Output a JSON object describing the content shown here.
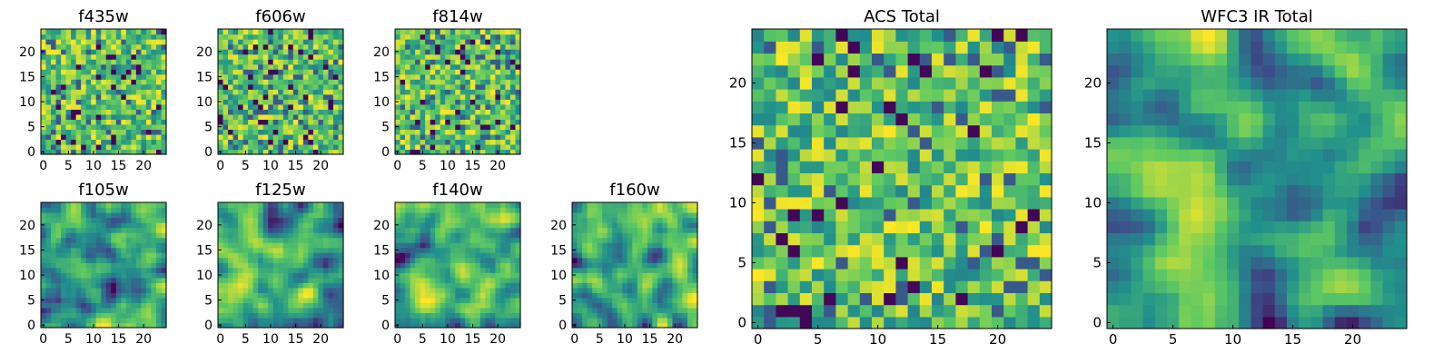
{
  "chart_data": [
    {
      "type": "heatmap",
      "title": "f435w",
      "size": 25,
      "xticks": [
        0,
        5,
        10,
        15,
        20
      ],
      "yticks": [
        0,
        5,
        10,
        15,
        20
      ],
      "xlim": [
        0,
        24
      ],
      "ylim": [
        0,
        24
      ],
      "colormap": "viridis",
      "texture": "noise",
      "seed": 11
    },
    {
      "type": "heatmap",
      "title": "f606w",
      "size": 25,
      "xticks": [
        0,
        5,
        10,
        15,
        20
      ],
      "yticks": [
        0,
        5,
        10,
        15,
        20
      ],
      "xlim": [
        0,
        24
      ],
      "ylim": [
        0,
        24
      ],
      "colormap": "viridis",
      "texture": "noise",
      "seed": 23
    },
    {
      "type": "heatmap",
      "title": "f814w",
      "size": 25,
      "xticks": [
        0,
        5,
        10,
        15,
        20
      ],
      "yticks": [
        0,
        5,
        10,
        15,
        20
      ],
      "xlim": [
        0,
        24
      ],
      "ylim": [
        0,
        24
      ],
      "colormap": "viridis",
      "texture": "noise",
      "seed": 37
    },
    {
      "type": "heatmap",
      "title": "f105w",
      "size": 25,
      "xticks": [
        0,
        5,
        10,
        15,
        20
      ],
      "yticks": [
        0,
        5,
        10,
        15,
        20
      ],
      "xlim": [
        0,
        24
      ],
      "ylim": [
        0,
        24
      ],
      "colormap": "viridis",
      "texture": "smooth",
      "seed": 41
    },
    {
      "type": "heatmap",
      "title": "f125w",
      "size": 25,
      "xticks": [
        0,
        5,
        10,
        15,
        20
      ],
      "yticks": [
        0,
        5,
        10,
        15,
        20
      ],
      "xlim": [
        0,
        24
      ],
      "ylim": [
        0,
        24
      ],
      "colormap": "viridis",
      "texture": "smooth",
      "seed": 53
    },
    {
      "type": "heatmap",
      "title": "f140w",
      "size": 25,
      "xticks": [
        0,
        5,
        10,
        15,
        20
      ],
      "yticks": [
        0,
        5,
        10,
        15,
        20
      ],
      "xlim": [
        0,
        24
      ],
      "ylim": [
        0,
        24
      ],
      "colormap": "viridis",
      "texture": "smooth",
      "seed": 67
    },
    {
      "type": "heatmap",
      "title": "f160w",
      "size": 25,
      "xticks": [
        0,
        5,
        10,
        15,
        20
      ],
      "yticks": [
        0,
        5,
        10,
        15,
        20
      ],
      "xlim": [
        0,
        24
      ],
      "ylim": [
        0,
        24
      ],
      "colormap": "viridis",
      "texture": "smooth",
      "seed": 79
    },
    {
      "type": "heatmap",
      "title": "ACS Total",
      "size": 25,
      "xticks": [
        0,
        5,
        10,
        15,
        20
      ],
      "yticks": [
        0,
        5,
        10,
        15,
        20
      ],
      "xlim": [
        0,
        24
      ],
      "ylim": [
        0,
        24
      ],
      "colormap": "viridis",
      "texture": "noise",
      "seed": 97
    },
    {
      "type": "heatmap",
      "title": "WFC3 IR Total",
      "size": 25,
      "xticks": [
        0,
        5,
        10,
        15,
        20
      ],
      "yticks": [
        0,
        5,
        10,
        15,
        20
      ],
      "xlim": [
        0,
        24
      ],
      "ylim": [
        0,
        24
      ],
      "colormap": "viridis",
      "texture": "smooth",
      "seed": 101
    }
  ],
  "colors": {
    "viridis_stops": [
      "#440154",
      "#3b528b",
      "#21918c",
      "#5ec962",
      "#fde725"
    ]
  }
}
